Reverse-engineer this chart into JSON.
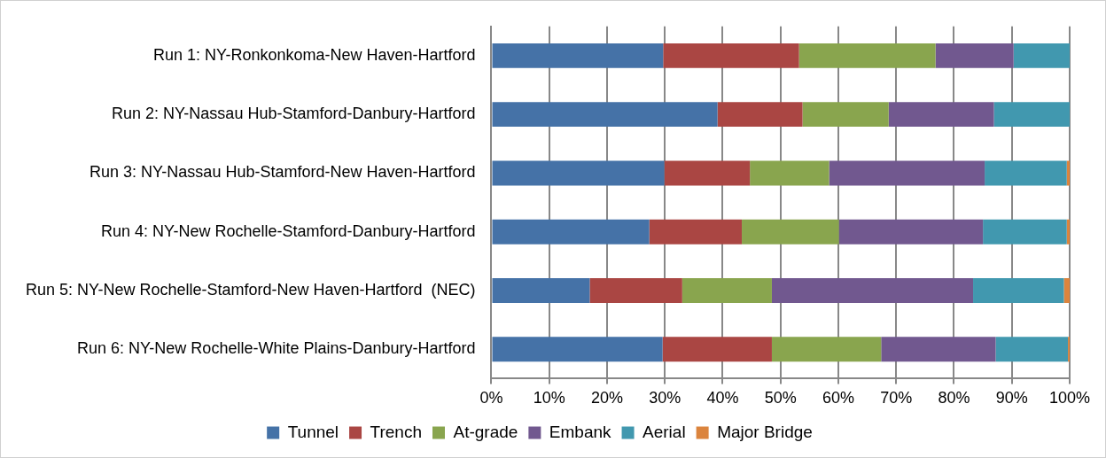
{
  "chart_data": {
    "type": "bar",
    "orientation": "horizontal",
    "stacked": true,
    "categories": [
      "Run 1: NY-Ronkonkoma-New Haven-Hartford",
      "Run 2: NY-Nassau Hub-Stamford-Danbury-Hartford",
      "Run 3: NY-Nassau Hub-Stamford-New Haven-Hartford",
      "Run 4: NY-New Rochelle-Stamford-Danbury-Hartford",
      "Run 5: NY-New Rochelle-Stamford-New Haven-Hartford  (NEC)",
      "Run 6: NY-New Rochelle-White Plains-Danbury-Hartford"
    ],
    "series": [
      {
        "name": "Tunnel",
        "color": "#4572a7",
        "values": [
          29.7,
          39.1,
          29.9,
          27.3,
          17.0,
          29.6
        ]
      },
      {
        "name": "Trench",
        "color": "#aa4643",
        "values": [
          23.5,
          14.7,
          14.8,
          16.0,
          16.0,
          18.9
        ]
      },
      {
        "name": "At-grade",
        "color": "#89a54e",
        "values": [
          23.6,
          14.9,
          13.7,
          16.8,
          15.5,
          18.9
        ]
      },
      {
        "name": "Embank",
        "color": "#71588f",
        "values": [
          13.5,
          18.2,
          26.9,
          24.9,
          34.8,
          19.8
        ]
      },
      {
        "name": "Aerial",
        "color": "#4198af",
        "values": [
          9.7,
          13.1,
          14.2,
          14.5,
          15.7,
          12.5
        ]
      },
      {
        "name": "Major Bridge",
        "color": "#db843d",
        "values": [
          0,
          0,
          0.5,
          0.5,
          1.0,
          0.3
        ]
      }
    ],
    "xlim": [
      0,
      100
    ],
    "xticks": [
      {
        "value": 0,
        "label": "0%"
      },
      {
        "value": 10,
        "label": "10%"
      },
      {
        "value": 20,
        "label": "20%"
      },
      {
        "value": 30,
        "label": "30%"
      },
      {
        "value": 40,
        "label": "40%"
      },
      {
        "value": 50,
        "label": "50%"
      },
      {
        "value": 60,
        "label": "60%"
      },
      {
        "value": 70,
        "label": "70%"
      },
      {
        "value": 80,
        "label": "80%"
      },
      {
        "value": 90,
        "label": "90%"
      },
      {
        "value": 100,
        "label": "100%"
      }
    ],
    "grid": "x",
    "legend": "bottom"
  }
}
